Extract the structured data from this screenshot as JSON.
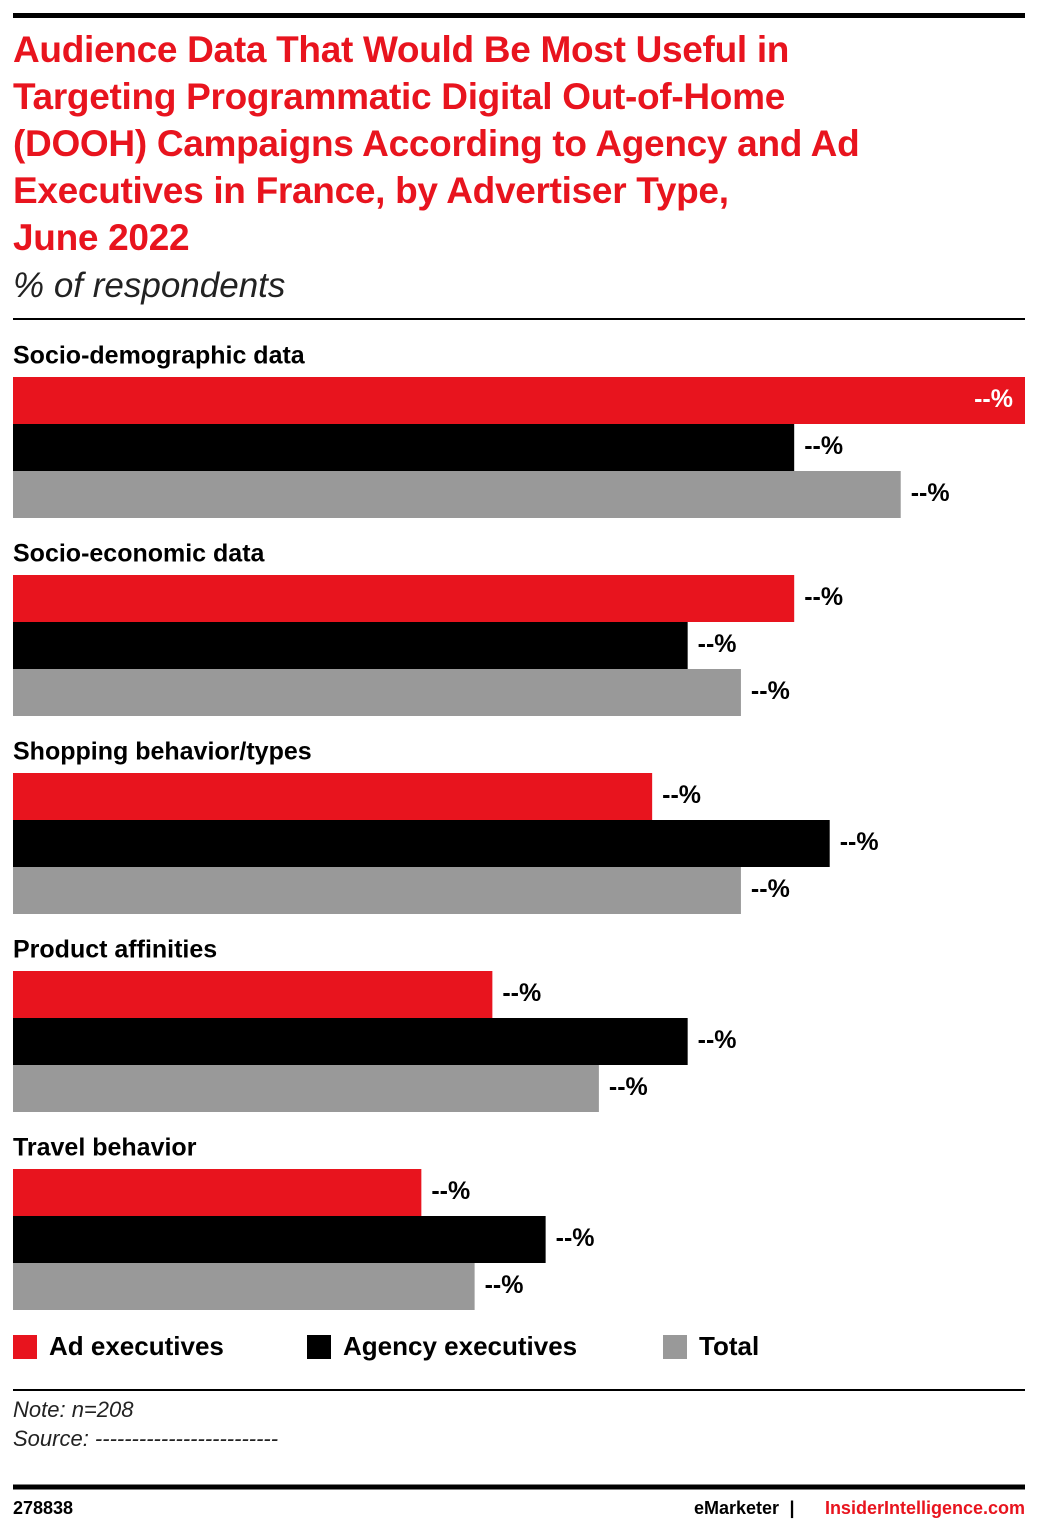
{
  "chart_data": {
    "type": "bar",
    "orientation": "horizontal",
    "title": "Audience Data That Would Be Most Useful in\nTargeting Programmatic Digital Out-of-Home\n(DOOH) Campaigns According to Agency and Ad\nExecutives in France, by Advertiser Type,\nJune 2022",
    "subtitle": "% of respondents",
    "categories": [
      "Socio-demographic data",
      "Socio-economic data",
      "Shopping behavior/types",
      "Product affinities",
      "Travel behavior"
    ],
    "series": [
      {
        "name": "Ad executives",
        "color": "#e8141e",
        "values": [
          57,
          44,
          36,
          27,
          23
        ],
        "value_labels": [
          "--%",
          "--%",
          "--%",
          "--%",
          "--%"
        ]
      },
      {
        "name": "Agency executives",
        "color": "#000000",
        "values": [
          44,
          38,
          46,
          38,
          30
        ],
        "value_labels": [
          "--%",
          "--%",
          "--%",
          "--%",
          "--%"
        ]
      },
      {
        "name": "Total",
        "color": "#999999",
        "values": [
          50,
          41,
          41,
          33,
          26
        ],
        "value_labels": [
          "--%",
          "--%",
          "--%",
          "--%",
          "--%"
        ]
      }
    ],
    "legend": "bottom",
    "note": "Note: n=208",
    "source": "Source: -------------------------"
  },
  "footer": {
    "id": "278838",
    "brand": "eMarketer",
    "separator": "|",
    "site": "InsiderIntelligence.com"
  }
}
